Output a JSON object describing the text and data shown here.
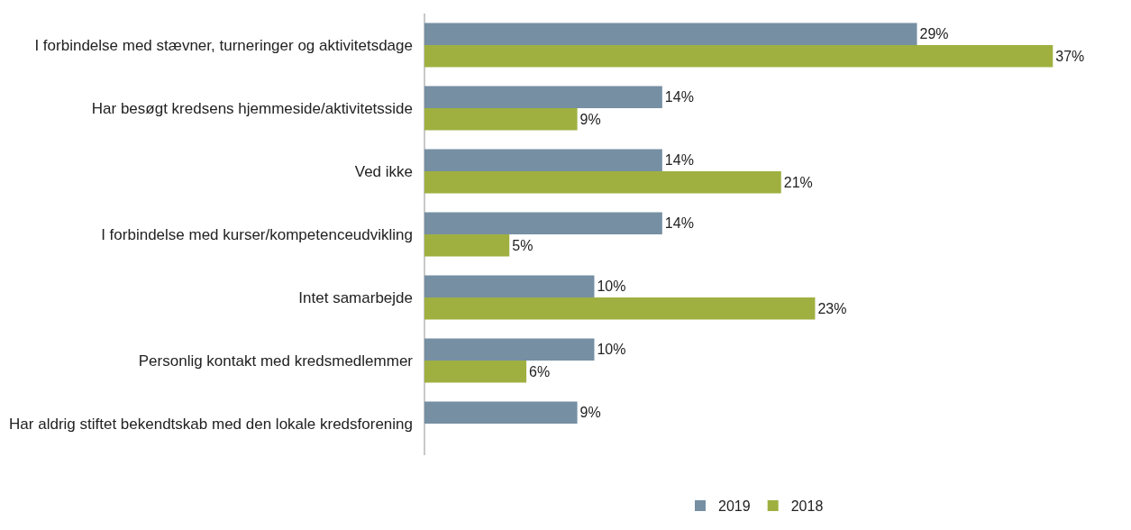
{
  "chart_data": {
    "type": "bar",
    "orientation": "horizontal",
    "categories": [
      "I forbindelse med stævner, turneringer og aktivitetsdage",
      "Har besøgt kredsens hjemmeside/aktivitetsside",
      "Ved ikke",
      "I forbindelse med kurser/kompetenceudvikling",
      "Intet samarbejde",
      "Personlig kontakt med kredsmedlemmer",
      "Har aldrig stiftet bekendtskab med den lokale kredsforening"
    ],
    "series": [
      {
        "name": "2019",
        "color": "#768fa3",
        "values": [
          29,
          14,
          14,
          14,
          10,
          10,
          9
        ],
        "value_labels": [
          "29%",
          "14%",
          "14%",
          "14%",
          "10%",
          "10%",
          "9%"
        ]
      },
      {
        "name": "2018",
        "color": "#9fb040",
        "values": [
          37,
          9,
          21,
          5,
          23,
          6,
          null
        ],
        "value_labels": [
          "37%",
          "9%",
          "21%",
          "5%",
          "23%",
          "6%",
          null
        ]
      }
    ],
    "legend": "bottom",
    "grid": false
  }
}
